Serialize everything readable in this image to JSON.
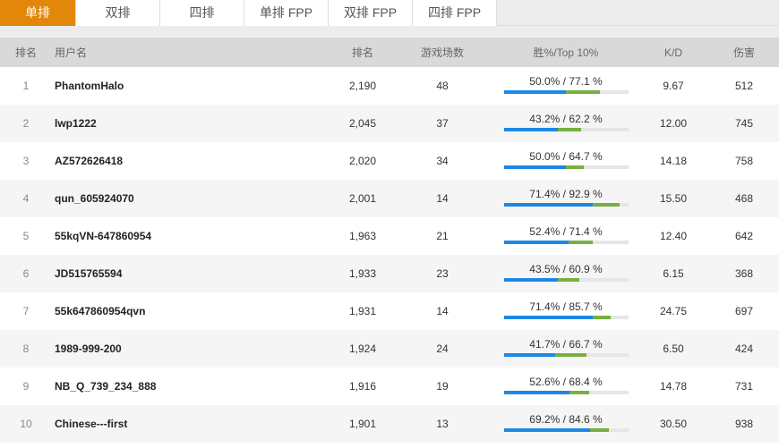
{
  "tabs": [
    "单排",
    "双排",
    "四排",
    "单排 FPP",
    "双排 FPP",
    "四排 FPP"
  ],
  "active_tab": 0,
  "headers": {
    "rank": "排名",
    "name": "用户名",
    "score": "排名",
    "games": "游戏场数",
    "win": "胜%/Top 10%",
    "kd": "K/D",
    "damage": "伤害"
  },
  "colors": {
    "accent": "#e2870a",
    "win_bar": "#1e88e5",
    "top10_bar": "#77b041"
  },
  "rows": [
    {
      "rank": "1",
      "name": "PhantomHalo",
      "score": "2,190",
      "games": "48",
      "win_text": "50.0% / 77.1 %",
      "win": 50.0,
      "top10": 77.1,
      "kd": "9.67",
      "damage": "512"
    },
    {
      "rank": "2",
      "name": "lwp1222",
      "score": "2,045",
      "games": "37",
      "win_text": "43.2% / 62.2 %",
      "win": 43.2,
      "top10": 62.2,
      "kd": "12.00",
      "damage": "745"
    },
    {
      "rank": "3",
      "name": "AZ572626418",
      "score": "2,020",
      "games": "34",
      "win_text": "50.0% / 64.7 %",
      "win": 50.0,
      "top10": 64.7,
      "kd": "14.18",
      "damage": "758"
    },
    {
      "rank": "4",
      "name": "qun_605924070",
      "score": "2,001",
      "games": "14",
      "win_text": "71.4% / 92.9 %",
      "win": 71.4,
      "top10": 92.9,
      "kd": "15.50",
      "damage": "468"
    },
    {
      "rank": "5",
      "name": "55kqVN-647860954",
      "score": "1,963",
      "games": "21",
      "win_text": "52.4% / 71.4 %",
      "win": 52.4,
      "top10": 71.4,
      "kd": "12.40",
      "damage": "642"
    },
    {
      "rank": "6",
      "name": "JD515765594",
      "score": "1,933",
      "games": "23",
      "win_text": "43.5% / 60.9 %",
      "win": 43.5,
      "top10": 60.9,
      "kd": "6.15",
      "damage": "368"
    },
    {
      "rank": "7",
      "name": "55k647860954qvn",
      "score": "1,931",
      "games": "14",
      "win_text": "71.4% / 85.7 %",
      "win": 71.4,
      "top10": 85.7,
      "kd": "24.75",
      "damage": "697"
    },
    {
      "rank": "8",
      "name": "1989-999-200",
      "score": "1,924",
      "games": "24",
      "win_text": "41.7% / 66.7 %",
      "win": 41.7,
      "top10": 66.7,
      "kd": "6.50",
      "damage": "424"
    },
    {
      "rank": "9",
      "name": "NB_Q_739_234_888",
      "score": "1,916",
      "games": "19",
      "win_text": "52.6% / 68.4 %",
      "win": 52.6,
      "top10": 68.4,
      "kd": "14.78",
      "damage": "731"
    },
    {
      "rank": "10",
      "name": "Chinese---first",
      "score": "1,901",
      "games": "13",
      "win_text": "69.2% / 84.6 %",
      "win": 69.2,
      "top10": 84.6,
      "kd": "30.50",
      "damage": "938"
    }
  ]
}
